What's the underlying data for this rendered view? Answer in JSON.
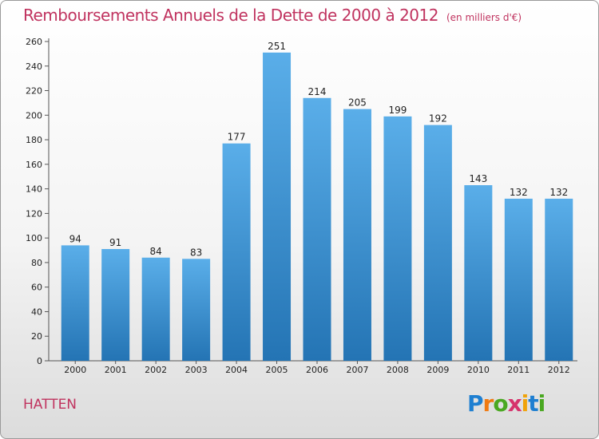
{
  "title": "Remboursements Annuels de la Dette de 2000 à 2012",
  "subtitle": "(en milliers d'€)",
  "commune": "HATTEN",
  "logo": {
    "letters": [
      {
        "ch": "P",
        "color": "#1e7fd1"
      },
      {
        "ch": "r",
        "color": "#f07a12"
      },
      {
        "ch": "o",
        "color": "#4aa821"
      },
      {
        "ch": "x",
        "color": "#d6336c"
      },
      {
        "ch": "i",
        "color": "#f0a30a"
      },
      {
        "ch": "t",
        "color": "#1e7fd1"
      },
      {
        "ch": "i",
        "color": "#4aa821"
      }
    ]
  },
  "chart_data": {
    "type": "bar",
    "title": "Remboursements Annuels de la Dette de 2000 à 2012",
    "subtitle": "(en milliers d'€)",
    "categories": [
      "2000",
      "2001",
      "2002",
      "2003",
      "2004",
      "2005",
      "2006",
      "2007",
      "2008",
      "2009",
      "2010",
      "2011",
      "2012"
    ],
    "values": [
      94,
      91,
      84,
      83,
      177,
      251,
      214,
      205,
      199,
      192,
      143,
      132,
      132
    ],
    "ylim": [
      0,
      260
    ],
    "yticks": [
      0,
      20,
      40,
      60,
      80,
      100,
      120,
      140,
      160,
      180,
      200,
      220,
      240,
      260
    ],
    "grid": false,
    "bar_color_top": "#5aaee9",
    "bar_color_bottom": "#2474b4"
  }
}
